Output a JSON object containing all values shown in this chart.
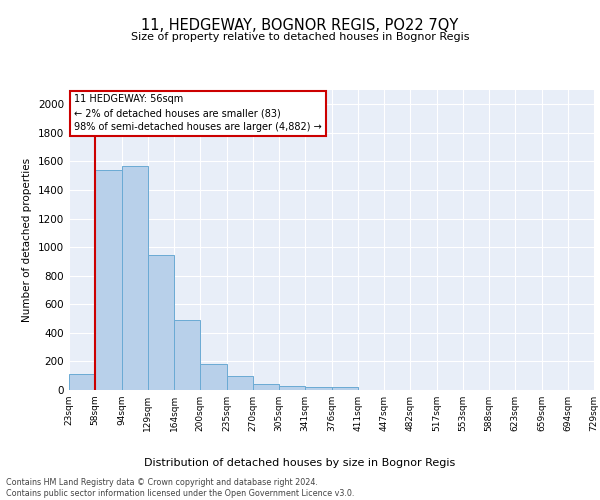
{
  "title1": "11, HEDGEWAY, BOGNOR REGIS, PO22 7QY",
  "title2": "Size of property relative to detached houses in Bognor Regis",
  "xlabel": "Distribution of detached houses by size in Bognor Regis",
  "ylabel": "Number of detached properties",
  "bins": [
    "23sqm",
    "58sqm",
    "94sqm",
    "129sqm",
    "164sqm",
    "200sqm",
    "235sqm",
    "270sqm",
    "305sqm",
    "341sqm",
    "376sqm",
    "411sqm",
    "447sqm",
    "482sqm",
    "517sqm",
    "553sqm",
    "588sqm",
    "623sqm",
    "659sqm",
    "694sqm",
    "729sqm"
  ],
  "values": [
    110,
    1540,
    1570,
    945,
    490,
    185,
    100,
    40,
    30,
    20,
    20,
    0,
    0,
    0,
    0,
    0,
    0,
    0,
    0,
    0
  ],
  "bar_color": "#b8d0ea",
  "bar_edge_color": "#6aaad4",
  "vline_color": "#cc0000",
  "annotation_text": "11 HEDGEWAY: 56sqm\n← 2% of detached houses are smaller (83)\n98% of semi-detached houses are larger (4,882) →",
  "annotation_box_color": "#ffffff",
  "annotation_box_edge": "#cc0000",
  "ylim": [
    0,
    2100
  ],
  "yticks": [
    0,
    200,
    400,
    600,
    800,
    1000,
    1200,
    1400,
    1600,
    1800,
    2000
  ],
  "footer": "Contains HM Land Registry data © Crown copyright and database right 2024.\nContains public sector information licensed under the Open Government Licence v3.0.",
  "bg_color": "#e8eef8",
  "grid_color": "#ffffff"
}
